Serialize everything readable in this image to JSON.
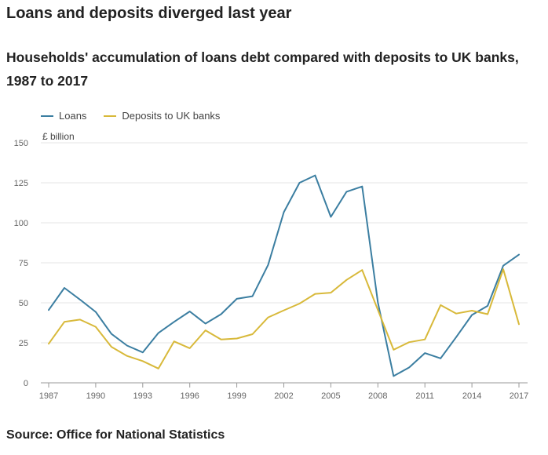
{
  "headline": "Loans and deposits diverged last year",
  "source": "Source: Office for National Statistics",
  "colors": {
    "loans": "#3b7ea1",
    "deposits": "#d8b93a",
    "grid": "#e4e4e4",
    "axis": "#999999"
  },
  "chart_data": {
    "type": "line",
    "title": "Households' accumulation of loans debt compared with deposits to UK banks, 1987 to 2017",
    "ylabel": "£ billion",
    "xlabel": "",
    "ylim": [
      0,
      150
    ],
    "xlim": [
      1987,
      2017
    ],
    "yticks": [
      "0",
      "25",
      "50",
      "75",
      "100",
      "125",
      "150"
    ],
    "xticks": [
      "1987",
      "1990",
      "1993",
      "1996",
      "1999",
      "2002",
      "2005",
      "2008",
      "2011",
      "2014",
      "2017"
    ],
    "grid": true,
    "legend": "top-left",
    "x": [
      1987,
      1988,
      1989,
      1990,
      1991,
      1992,
      1993,
      1994,
      1995,
      1996,
      1997,
      1998,
      1999,
      2000,
      2001,
      2002,
      2003,
      2004,
      2005,
      2006,
      2007,
      2008,
      2009,
      2010,
      2011,
      2012,
      2013,
      2014,
      2015,
      2016,
      2017
    ],
    "series": [
      {
        "name": "Loans",
        "color": "#3b7ea1",
        "values": [
          45.5,
          59.3,
          52,
          44.3,
          30.6,
          23.3,
          19,
          31.2,
          38.1,
          44.6,
          37,
          42.9,
          52.5,
          54.1,
          73.7,
          106.6,
          125,
          129.6,
          103.7,
          119.4,
          122.7,
          50.3,
          4.2,
          9.6,
          18.6,
          15.3,
          28.6,
          42.4,
          48.1,
          73.2,
          80.1
        ]
      },
      {
        "name": "Deposits to UK banks",
        "color": "#d8b93a",
        "values": [
          24.4,
          38.1,
          39.5,
          35,
          22.5,
          16.8,
          13.6,
          8.9,
          25.9,
          21.6,
          32.8,
          27.1,
          27.7,
          30.4,
          40.9,
          45.3,
          49.5,
          55.6,
          56.3,
          64.3,
          70.5,
          45.6,
          20.7,
          25.4,
          27.1,
          48.6,
          43.3,
          45.1,
          42.9,
          71,
          36.6
        ]
      }
    ]
  }
}
